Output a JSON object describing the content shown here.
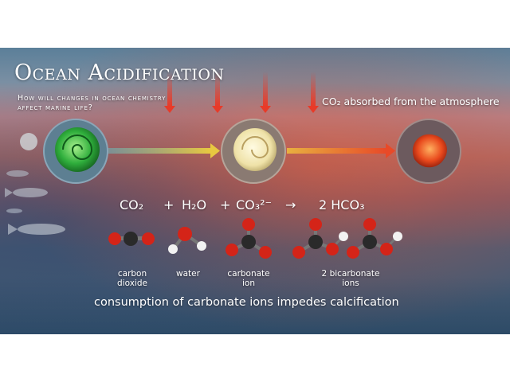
{
  "header": {
    "title": "Ocean Acidification",
    "subtitle": "How will changes in ocean chemistry affect marine life?",
    "absorbed_label": "CO₂ absorbed from the atmosphere"
  },
  "equation": {
    "co2": "CO₂",
    "plus_1": "+",
    "h2o": "H₂O",
    "plus_2": "+",
    "co3": "CO₃²⁻",
    "arrow": "→",
    "hco3": "2 HCO₃"
  },
  "molecule_labels": {
    "carbon_dioxide": "carbon\ndioxide",
    "water": "water",
    "carbonate_ion": "carbonate\nion",
    "bicarbonate_ions": "2 bicarbonate\nions"
  },
  "footer": "consumption of carbonate ions impedes calcification",
  "colors": {
    "arrow_red": "#e83a28",
    "carbon": "#2a2a2a",
    "oxygen": "#d42418",
    "hydrogen": "#f2f2f2"
  }
}
